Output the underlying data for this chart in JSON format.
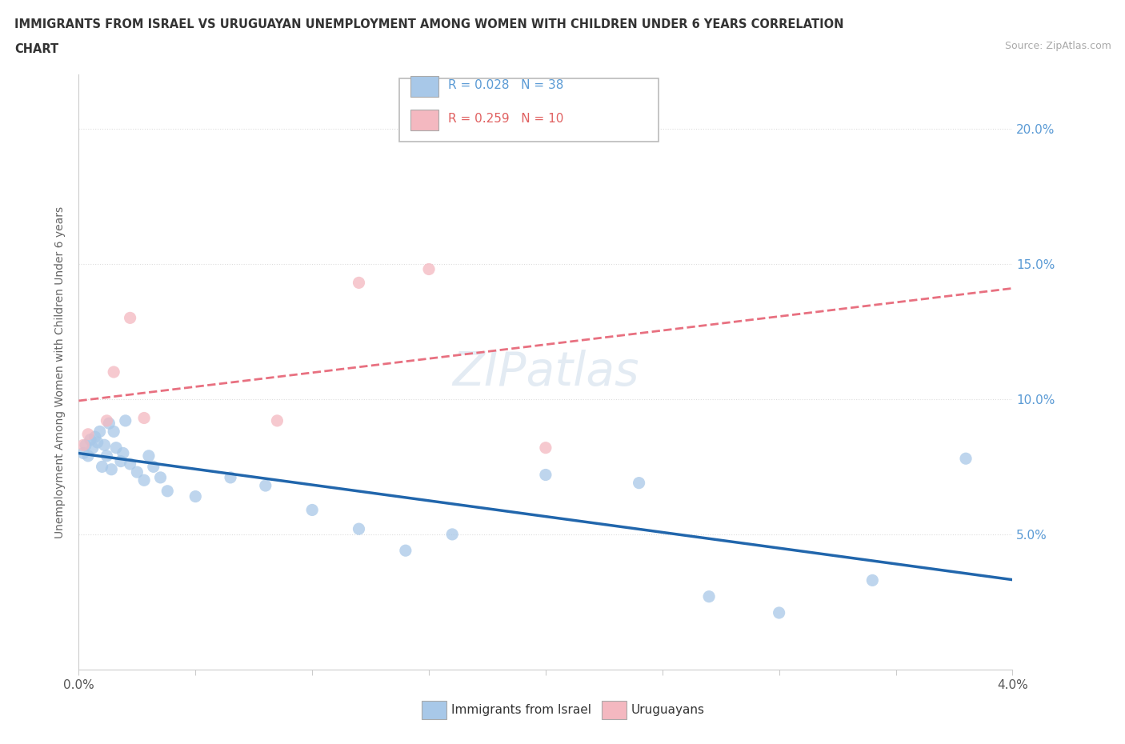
{
  "title_line1": "IMMIGRANTS FROM ISRAEL VS URUGUAYAN UNEMPLOYMENT AMONG WOMEN WITH CHILDREN UNDER 6 YEARS CORRELATION",
  "title_line2": "CHART",
  "source_text": "Source: ZipAtlas.com",
  "ylabel": "Unemployment Among Women with Children Under 6 years",
  "legend1_label": "R = 0.028   N = 38",
  "legend2_label": "R = 0.259   N = 10",
  "legend_israel_color": "#a8c8e8",
  "legend_uruguayan_color": "#f4b8c0",
  "watermark_text": "ZIPatlas",
  "blue_dot_color": "#a8c8e8",
  "pink_dot_color": "#f4b8c0",
  "blue_line_color": "#2166ac",
  "pink_line_color": "#e87080",
  "grid_color": "#cccccc",
  "background_color": "#ffffff",
  "israel_x": [
    0.0002,
    0.0003,
    0.0004,
    0.0005,
    0.0006,
    0.0007,
    0.0008,
    0.0009,
    0.001,
    0.0011,
    0.0012,
    0.0013,
    0.0014,
    0.0015,
    0.0016,
    0.0018,
    0.0019,
    0.002,
    0.0022,
    0.0025,
    0.0028,
    0.003,
    0.0032,
    0.0035,
    0.0038,
    0.005,
    0.0065,
    0.008,
    0.01,
    0.012,
    0.014,
    0.016,
    0.02,
    0.024,
    0.027,
    0.03,
    0.034,
    0.038
  ],
  "israel_y": [
    0.08,
    0.083,
    0.079,
    0.085,
    0.082,
    0.086,
    0.084,
    0.088,
    0.075,
    0.083,
    0.079,
    0.091,
    0.074,
    0.088,
    0.082,
    0.077,
    0.08,
    0.092,
    0.076,
    0.073,
    0.07,
    0.079,
    0.075,
    0.071,
    0.066,
    0.064,
    0.071,
    0.068,
    0.059,
    0.052,
    0.044,
    0.05,
    0.072,
    0.069,
    0.027,
    0.021,
    0.033,
    0.078
  ],
  "uruguayan_x": [
    0.0002,
    0.0004,
    0.0012,
    0.0015,
    0.0022,
    0.0028,
    0.0085,
    0.012,
    0.015,
    0.02
  ],
  "uruguayan_y": [
    0.083,
    0.087,
    0.092,
    0.11,
    0.13,
    0.093,
    0.092,
    0.143,
    0.148,
    0.082
  ],
  "xmin": 0.0,
  "xmax": 0.04,
  "ymin": 0.0,
  "ymax": 0.22
}
